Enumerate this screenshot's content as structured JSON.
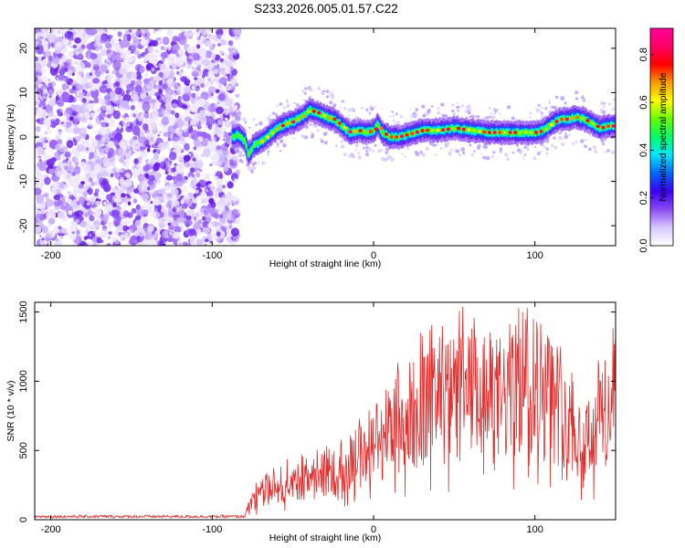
{
  "title": "S233.2026.005.01.57.C22",
  "chart_data": [
    {
      "type": "heatmap",
      "name": "spectrogram",
      "xlabel": "Height of straight line (km)",
      "ylabel": "Frequency (Hz)",
      "xlim": [
        -210,
        150
      ],
      "ylim": [
        -24.5,
        24.5
      ],
      "xticks": [
        -200,
        -100,
        0,
        100
      ],
      "yticks": [
        -20,
        -10,
        0,
        10,
        20
      ],
      "noise_region_x": [
        -210,
        -88
      ],
      "ridge": {
        "x": [
          -88,
          -84,
          -80,
          -78,
          -75,
          -70,
          -65,
          -60,
          -55,
          -50,
          -45,
          -40,
          -35,
          -30,
          -25,
          -20,
          -15,
          -10,
          -5,
          0,
          2,
          5,
          10,
          15,
          20,
          25,
          30,
          40,
          50,
          60,
          70,
          80,
          90,
          100,
          105,
          110,
          115,
          120,
          125,
          130,
          135,
          140,
          145,
          150
        ],
        "y": [
          0,
          0.5,
          -1,
          -4,
          -2,
          -1,
          0.5,
          2,
          3,
          3.5,
          4.5,
          6,
          5.5,
          4.5,
          4,
          2.5,
          1,
          1.5,
          1,
          1.5,
          3,
          1,
          0,
          0,
          0.5,
          1,
          1.5,
          1.5,
          2,
          1.5,
          1,
          1,
          1,
          1,
          1.5,
          3,
          4,
          4,
          4.5,
          4,
          3,
          2,
          2.5,
          2.5
        ]
      }
    },
    {
      "type": "line",
      "name": "snr",
      "xlabel": "Height of straight line (km)",
      "ylabel": "SNR (10 * v/v)",
      "xlim": [
        -210,
        150
      ],
      "ylim": [
        0,
        1570
      ],
      "xticks": [
        -200,
        -100,
        0,
        100
      ],
      "yticks": [
        0,
        500,
        1000,
        1500
      ],
      "color": "#e03030",
      "trend": {
        "x": [
          -210,
          -80,
          -75,
          -60,
          -40,
          -20,
          0,
          20,
          40,
          60,
          80,
          95,
          100,
          110,
          120,
          130,
          140,
          150
        ],
        "y": [
          20,
          25,
          140,
          270,
          310,
          380,
          560,
          740,
          830,
          900,
          860,
          1060,
          990,
          870,
          820,
          520,
          780,
          830
        ]
      }
    }
  ],
  "colorbar": {
    "label": "Normalized spectral amplitude",
    "ticks": [
      "0.0",
      "0.2",
      "0.4",
      "0.6",
      "0.8"
    ],
    "tick_values": [
      0.0,
      0.2,
      0.4,
      0.6,
      0.8
    ],
    "range": [
      0.0,
      0.91
    ],
    "colors": [
      "#ffffff",
      "#d8c8ff",
      "#8a4af2",
      "#3a00ff",
      "#0066ff",
      "#00e6ff",
      "#00ff66",
      "#66ff00",
      "#ffff00",
      "#ff9900",
      "#ff0000",
      "#ff0066",
      "#ff0099"
    ]
  }
}
